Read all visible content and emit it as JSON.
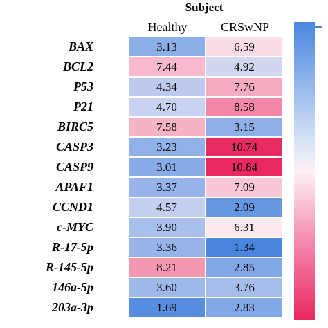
{
  "chart_data": {
    "type": "heatmap",
    "title": "Subject",
    "columns": [
      "Healthy",
      "CRSwNP"
    ],
    "rows": [
      "BAX",
      "BCL2",
      "P53",
      "P21",
      "BIRC5",
      "CASP3",
      "CASP9",
      "APAF1",
      "CCND1",
      "c-MYC",
      "R-17-5p",
      "R-145-5p",
      "146a-5p",
      "203a-3p"
    ],
    "values": [
      [
        3.13,
        6.59
      ],
      [
        7.44,
        4.92
      ],
      [
        4.34,
        7.76
      ],
      [
        4.7,
        8.58
      ],
      [
        7.58,
        3.15
      ],
      [
        3.23,
        10.74
      ],
      [
        3.01,
        10.84
      ],
      [
        3.37,
        7.09
      ],
      [
        4.57,
        2.09
      ],
      [
        3.9,
        6.31
      ],
      [
        3.36,
        1.34
      ],
      [
        8.21,
        2.85
      ],
      [
        3.6,
        3.76
      ],
      [
        1.69,
        2.83
      ]
    ],
    "value_labels": [
      [
        "3.13",
        "6.59"
      ],
      [
        "7.44",
        "4.92"
      ],
      [
        "4.34",
        "7.76"
      ],
      [
        "4.70",
        "8.58"
      ],
      [
        "7.58",
        "3.15"
      ],
      [
        "3.23",
        "10.74"
      ],
      [
        "3.01",
        "10.84"
      ],
      [
        "3.37",
        "7.09"
      ],
      [
        "4.57",
        "2.09"
      ],
      [
        "3.90",
        "6.31"
      ],
      [
        "3.36",
        "1.34"
      ],
      [
        "8.21",
        "2.85"
      ],
      [
        "3.60",
        "3.76"
      ],
      [
        "1.69",
        "2.83"
      ]
    ],
    "colors": {
      "low": "#4a86e0",
      "mid": "#fdf2f6",
      "high": "#e8285e"
    },
    "legend": "right"
  }
}
